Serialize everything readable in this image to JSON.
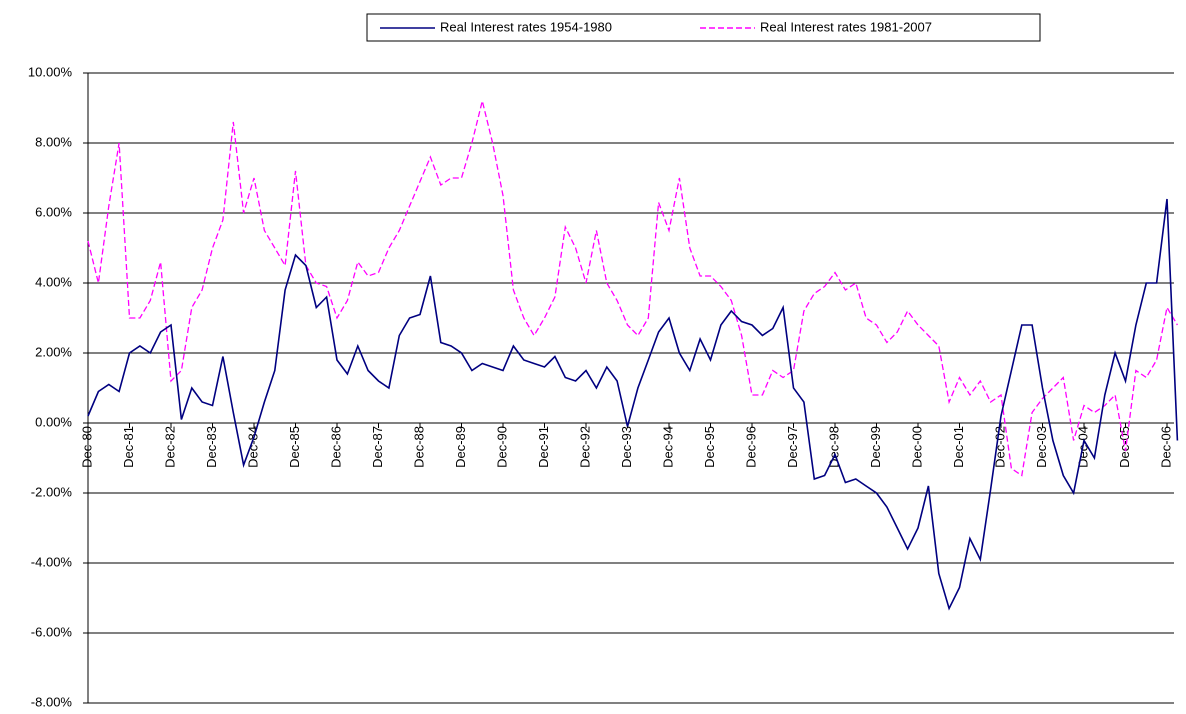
{
  "chart_data": {
    "type": "line",
    "categories": [
      "Dec-80",
      null,
      null,
      null,
      "Dec-81",
      null,
      null,
      null,
      "Dec-82",
      null,
      null,
      null,
      "Dec-83",
      null,
      null,
      null,
      "Dec-84",
      null,
      null,
      null,
      "Dec-85",
      null,
      null,
      null,
      "Dec-86",
      null,
      null,
      null,
      "Dec-87",
      null,
      null,
      null,
      "Dec-88",
      null,
      null,
      null,
      "Dec-89",
      null,
      null,
      null,
      "Dec-90",
      null,
      null,
      null,
      "Dec-91",
      null,
      null,
      null,
      "Dec-92",
      null,
      null,
      null,
      "Dec-93",
      null,
      null,
      null,
      "Dec-94",
      null,
      null,
      null,
      "Dec-95",
      null,
      null,
      null,
      "Dec-96",
      null,
      null,
      null,
      "Dec-97",
      null,
      null,
      null,
      "Dec-98",
      null,
      null,
      null,
      "Dec-99",
      null,
      null,
      null,
      "Dec-00",
      null,
      null,
      null,
      "Dec-01",
      null,
      null,
      null,
      "Dec-02",
      null,
      null,
      null,
      "Dec-03",
      null,
      null,
      null,
      "Dec-04",
      null,
      null,
      null,
      "Dec-05",
      null,
      null,
      null,
      "Dec-06",
      null
    ],
    "series": [
      {
        "name": "Real Interest rates 1954-1980",
        "color": "#000080",
        "dash": false,
        "values": [
          0.2,
          0.9,
          1.1,
          0.9,
          2.0,
          2.2,
          2.0,
          2.6,
          2.8,
          0.1,
          1.0,
          0.6,
          0.5,
          1.9,
          0.3,
          -1.2,
          -0.4,
          0.6,
          1.5,
          3.8,
          4.8,
          4.5,
          3.3,
          3.6,
          1.8,
          1.4,
          2.2,
          1.5,
          1.2,
          1.0,
          2.5,
          3.0,
          3.1,
          4.2,
          2.3,
          2.2,
          2.0,
          1.5,
          1.7,
          1.6,
          1.5,
          2.2,
          1.8,
          1.7,
          1.6,
          1.9,
          1.3,
          1.2,
          1.5,
          1.0,
          1.6,
          1.2,
          -0.1,
          1.0,
          1.8,
          2.6,
          3.0,
          2.0,
          1.5,
          2.4,
          1.8,
          2.8,
          3.2,
          2.9,
          2.8,
          2.5,
          2.7,
          3.3,
          1.0,
          0.6,
          -1.6,
          -1.5,
          -0.9,
          -1.7,
          -1.6,
          -1.8,
          -2.0,
          -2.4,
          -3.0,
          -3.6,
          -3.0,
          -1.8,
          -4.3,
          -5.3,
          -4.7,
          -3.3,
          -3.9,
          -1.9,
          0.2,
          1.5,
          2.8,
          2.8,
          1.0,
          -0.5,
          -1.5,
          -2.0,
          -0.5,
          -1.0,
          0.8,
          2.0,
          1.2,
          2.8,
          4.0,
          4.0,
          6.4,
          -0.5
        ]
      },
      {
        "name": "Real Interest rates 1981-2007",
        "color": "#ff00ff",
        "dash": true,
        "values": [
          5.2,
          4.0,
          6.2,
          8.0,
          3.0,
          3.0,
          3.5,
          4.6,
          1.2,
          1.5,
          3.3,
          3.8,
          5.0,
          5.8,
          8.6,
          6.0,
          7.0,
          5.5,
          5.0,
          4.5,
          7.2,
          4.5,
          4.0,
          3.9,
          3.0,
          3.5,
          4.6,
          4.2,
          4.3,
          5.0,
          5.5,
          6.2,
          6.9,
          7.6,
          6.8,
          7.0,
          7.0,
          8.0,
          9.2,
          8.0,
          6.5,
          3.8,
          3.0,
          2.5,
          3.0,
          3.6,
          5.6,
          5.0,
          4.0,
          5.5,
          4.0,
          3.5,
          2.8,
          2.5,
          3.0,
          6.3,
          5.5,
          7.0,
          5.0,
          4.2,
          4.2,
          3.9,
          3.5,
          2.5,
          0.8,
          0.8,
          1.5,
          1.3,
          1.5,
          3.2,
          3.7,
          3.9,
          4.3,
          3.8,
          4.0,
          3.0,
          2.8,
          2.3,
          2.6,
          3.2,
          2.8,
          2.5,
          2.2,
          0.6,
          1.3,
          0.8,
          1.2,
          0.6,
          0.8,
          -1.3,
          -1.5,
          0.3,
          0.7,
          1.0,
          1.3,
          -0.5,
          0.5,
          0.3,
          0.5,
          0.8,
          -0.8,
          1.5,
          1.3,
          1.8,
          3.3,
          2.8
        ]
      }
    ],
    "ylim": [
      -8,
      10
    ],
    "yticks": [
      {
        "value": -8,
        "label": "-8.00%"
      },
      {
        "value": -6,
        "label": "-6.00%"
      },
      {
        "value": -4,
        "label": "-4.00%"
      },
      {
        "value": -2,
        "label": "-2.00%"
      },
      {
        "value": 0,
        "label": "0.00%"
      },
      {
        "value": 2,
        "label": "2.00%"
      },
      {
        "value": 4,
        "label": "4.00%"
      },
      {
        "value": 6,
        "label": "6.00%"
      },
      {
        "value": 8,
        "label": "8.00%"
      },
      {
        "value": 10,
        "label": "10.00%"
      }
    ],
    "grid": true,
    "legend": "top"
  }
}
